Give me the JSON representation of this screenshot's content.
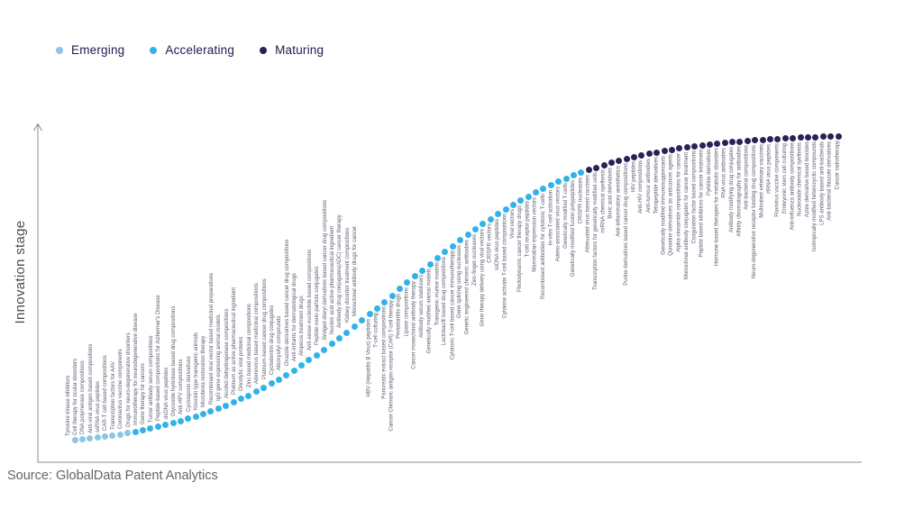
{
  "legend": {
    "items": [
      {
        "label": "Emerging",
        "color": "#8ec4e4"
      },
      {
        "label": "Accelerating",
        "color": "#31b2e8"
      },
      {
        "label": "Maturing",
        "color": "#282257"
      }
    ]
  },
  "axes": {
    "y_label": "Innovation stage",
    "x_label": ""
  },
  "footer": {
    "source": "Source: GlobalData Patent Analytics"
  },
  "chart_data": {
    "type": "scatter",
    "title": "",
    "xlabel": "",
    "ylabel": "Innovation stage",
    "legend_position": "top-left",
    "grid": false,
    "curve_shape": "S-curve (logistic); points ordered left-to-right by increasing innovation stage",
    "stage_colors": {
      "Emerging": "#8ec4e4",
      "Accelerating": "#31b2e8",
      "Maturing": "#282257"
    },
    "points": [
      {
        "label": "Tyrosine kinase inhibitors",
        "stage": "Emerging"
      },
      {
        "label": "Cell therapy for ocular disorders",
        "stage": "Emerging"
      },
      {
        "label": "DNA polymerase compositions",
        "stage": "Emerging"
      },
      {
        "label": "Anti-viral antigen based compositions",
        "stage": "Emerging"
      },
      {
        "label": "ssRNA virus peptides",
        "stage": "Emerging"
      },
      {
        "label": "CAR-T cell based compositions",
        "stage": "Emerging"
      },
      {
        "label": "Transcription factors for AAV",
        "stage": "Emerging"
      },
      {
        "label": "Coronavirus vaccine components",
        "stage": "Emerging"
      },
      {
        "label": "Drugs for neuro-degenerative disorders",
        "stage": "Accelerating"
      },
      {
        "label": "Immunotherapy for neurodegenerative disease",
        "stage": "Accelerating"
      },
      {
        "label": "Gene therapy for cancers",
        "stage": "Accelerating"
      },
      {
        "label": "Tumor antibody serum compositions",
        "stage": "Accelerating"
      },
      {
        "label": "Peptide-based compositions for Alzheimer's Disease",
        "stage": "Accelerating"
      },
      {
        "label": "dsDNA virus peptides",
        "stage": "Accelerating"
      },
      {
        "label": "Glycoside hydrolase based drug compositions",
        "stage": "Accelerating"
      },
      {
        "label": "Anti-HPV compositions",
        "stage": "Accelerating"
      },
      {
        "label": "Cyclosporin derivatives",
        "stage": "Accelerating"
      },
      {
        "label": "Knockin type transgenic animals",
        "stage": "Accelerating"
      },
      {
        "label": "Microbiota restoration therapy",
        "stage": "Accelerating"
      },
      {
        "label": "Recombinant viral vector based medicinal preparations",
        "stage": "Accelerating"
      },
      {
        "label": "IgG gene expressing animal models",
        "stage": "Accelerating"
      },
      {
        "label": "Alcohol dehydrogenase compositions",
        "stage": "Accelerating"
      },
      {
        "label": "Platinum as active pharmaceutical ingredient",
        "stage": "Accelerating"
      },
      {
        "label": "Oncolytic viral proteins",
        "stage": "Accelerating"
      },
      {
        "label": "Zinc based medicinal compositions",
        "stage": "Accelerating"
      },
      {
        "label": "Adenovirus based medicinal compositions",
        "stage": "Accelerating"
      },
      {
        "label": "Platinum-based cancer drug compositions",
        "stage": "Accelerating"
      },
      {
        "label": "Cyclodextrin drug conjugates",
        "stage": "Accelerating"
      },
      {
        "label": "Alkoxysilyl compounds",
        "stage": "Accelerating"
      },
      {
        "label": "Oxazole derivatives based cancer drug compositions",
        "stage": "Accelerating"
      },
      {
        "label": "Anti-irritants for dermatological drugs",
        "stage": "Accelerating"
      },
      {
        "label": "Alopecia treatment drugs",
        "stage": "Accelerating"
      },
      {
        "label": "Anti-sense nucleotide based compositions",
        "stage": "Accelerating"
      },
      {
        "label": "Peptide nano-particle conjugates",
        "stage": "Accelerating"
      },
      {
        "label": "Bridged diaryl derivatives based cancer drug compositions",
        "stage": "Accelerating"
      },
      {
        "label": "Nucleic acid active pharmaceutical ingredient",
        "stage": "Accelerating"
      },
      {
        "label": "Antibody drug conjugates(ADC) cancer therapy",
        "stage": "Accelerating"
      },
      {
        "label": "Kidney disorder treatment compositions",
        "stage": "Accelerating"
      },
      {
        "label": "Monoclonal antibody drugs for cancer",
        "stage": "Accelerating"
      },
      {
        "label": "HBV (Hepatitis B Virus) peptides",
        "stage": "Accelerating"
      },
      {
        "label": "T-cell culturing",
        "stage": "Accelerating"
      },
      {
        "label": "Pancreatic extract based compositions",
        "stage": "Accelerating"
      },
      {
        "label": "Cancer Chimeric antigen receptor (CAR) T-cell therapy",
        "stage": "Accelerating"
      },
      {
        "label": "Periodontitis drugs",
        "stage": "Accelerating"
      },
      {
        "label": "Lipase compositions",
        "stage": "Accelerating"
      },
      {
        "label": "Cancer monoclonal antibody therapy",
        "stage": "Accelerating"
      },
      {
        "label": "Antibody serum stabilizers",
        "stage": "Accelerating"
      },
      {
        "label": "Genetically modified animal models",
        "stage": "Accelerating"
      },
      {
        "label": "Transgenic murine models",
        "stage": "Accelerating"
      },
      {
        "label": "Lactobacilli based drug compositions",
        "stage": "Accelerating"
      },
      {
        "label": "Cytotoxic T-cell based cancer immunotherapy",
        "stage": "Accelerating"
      },
      {
        "label": "Gene splicing using nucleases",
        "stage": "Accelerating"
      },
      {
        "label": "Genetic engineered chimeric antibodies",
        "stage": "Accelerating"
      },
      {
        "label": "Zinc-finger nucleases",
        "stage": "Accelerating"
      },
      {
        "label": "Gene therapy delivery using viral vectors",
        "stage": "Accelerating"
      },
      {
        "label": "CRISPR vectors",
        "stage": "Accelerating"
      },
      {
        "label": "ssDNA virus peptides",
        "stage": "Accelerating"
      },
      {
        "label": "Cytokine activate T-cell based compositions",
        "stage": "Accelerating"
      },
      {
        "label": "Viral vectors",
        "stage": "Accelerating"
      },
      {
        "label": "Photodynamic cancer therapy drugs",
        "stage": "Accelerating"
      },
      {
        "label": "T-cell receptor peptides",
        "stage": "Accelerating"
      },
      {
        "label": "Mammalian expression vectors",
        "stage": "Accelerating"
      },
      {
        "label": "Recombinant antibodies for cytotoxic T-cells",
        "stage": "Accelerating"
      },
      {
        "label": "In-vitro T-cell activation",
        "stage": "Accelerating"
      },
      {
        "label": "Adeno-associated virus vectors",
        "stage": "Accelerating"
      },
      {
        "label": "Genetically modified T-cells",
        "stage": "Accelerating"
      },
      {
        "label": "Genetically modified fusion polypeptides",
        "stage": "Accelerating"
      },
      {
        "label": "CRISPR nucleases",
        "stage": "Accelerating"
      },
      {
        "label": "Attenuated virus based vaccines",
        "stage": "Maturing"
      },
      {
        "label": "Transcription factors for genetically modified cells",
        "stage": "Maturing"
      },
      {
        "label": "miRNA chemical synthesis",
        "stage": "Maturing"
      },
      {
        "label": "Boric acid derivatives",
        "stage": "Maturing"
      },
      {
        "label": "Anti-inflammatory anesthetics",
        "stage": "Maturing"
      },
      {
        "label": "Purine derivatives based cancer drug compositions",
        "stage": "Maturing"
      },
      {
        "label": "HIV peptides",
        "stage": "Maturing"
      },
      {
        "label": "Anti-HIV compositions",
        "stage": "Maturing"
      },
      {
        "label": "Anti-tumour antibodies",
        "stage": "Maturing"
      },
      {
        "label": "Tetrapeptide derivatives",
        "stage": "Maturing"
      },
      {
        "label": "Genetically modified immunosuppresants",
        "stage": "Maturing"
      },
      {
        "label": "Quinoline derivatives as anticancer agents",
        "stage": "Maturing"
      },
      {
        "label": "Alpha-cinnamide compositions for cancer",
        "stage": "Maturing"
      },
      {
        "label": "Monoclonal antibody conjugates for cancer treatment",
        "stage": "Maturing"
      },
      {
        "label": "Coagulation factor based compositions",
        "stage": "Maturing"
      },
      {
        "label": "Peptide based inhibitors for cancer treatment",
        "stage": "Maturing"
      },
      {
        "label": "Pyridine derivatives",
        "stage": "Maturing"
      },
      {
        "label": "Hormone based therapies for metabolic disorders",
        "stage": "Maturing"
      },
      {
        "label": "RNA virus antibodies",
        "stage": "Maturing"
      },
      {
        "label": "Antibody modifying drug conjugates",
        "stage": "Maturing"
      },
      {
        "label": "Affinity chromatography for antibodies",
        "stage": "Maturing"
      },
      {
        "label": "Anti-bacterial compositions",
        "stage": "Maturing"
      },
      {
        "label": "Neuro-degenerative receptor binding drug compositions",
        "stage": "Maturing"
      },
      {
        "label": "Multivalent veterinary vaccines",
        "stage": "Maturing"
      },
      {
        "label": "rtRNA virus peptides",
        "stage": "Maturing"
      },
      {
        "label": "Flavivirus vaccine components",
        "stage": "Maturing"
      },
      {
        "label": "Embryonic stem cell culturing",
        "stage": "Maturing"
      },
      {
        "label": "Anti-influenza antibody compositions",
        "stage": "Maturing"
      },
      {
        "label": "Nucleoside chemical synthesis",
        "stage": "Maturing"
      },
      {
        "label": "Azole derivative based biocides",
        "stage": "Maturing"
      },
      {
        "label": "Isotropically modified heterocyclic compounds",
        "stage": "Maturing"
      },
      {
        "label": "LPS antibody based anti-bacterials",
        "stage": "Maturing"
      },
      {
        "label": "Anti-bacterial thiazole derivatives",
        "stage": "Maturing"
      },
      {
        "label": "Cancer radiotherapy",
        "stage": "Maturing"
      }
    ]
  }
}
